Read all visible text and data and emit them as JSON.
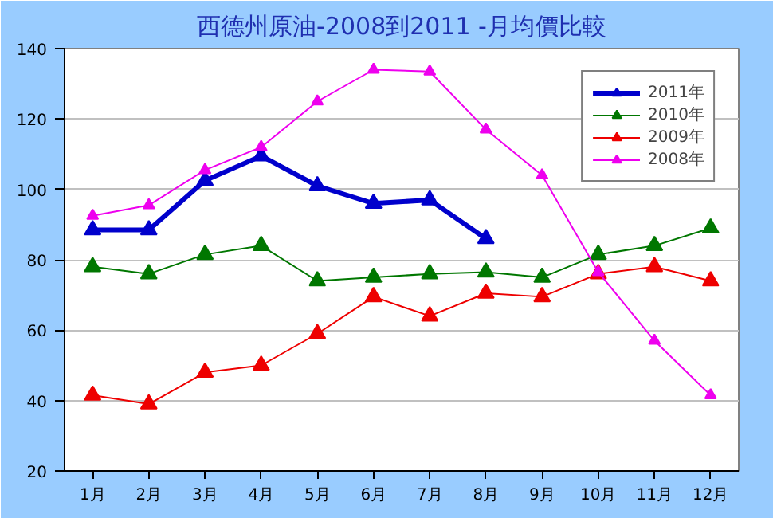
{
  "chart_data": {
    "type": "line",
    "title": "西德州原油-2008到2011 -月均價比較",
    "categories": [
      "1月",
      "2月",
      "3月",
      "4月",
      "5月",
      "6月",
      "7月",
      "8月",
      "9月",
      "10月",
      "11月",
      "12月"
    ],
    "ylim": [
      20,
      140
    ],
    "yticks": [
      20,
      40,
      60,
      80,
      100,
      120,
      140
    ],
    "grid": "y",
    "legend": "top right",
    "marker": "triangle",
    "line_style": "solid",
    "series": [
      {
        "name": "2011年",
        "color": "#0000cc",
        "values": [
          88.5,
          88.5,
          102.5,
          109.5,
          101,
          96,
          97,
          86,
          null,
          null,
          null,
          null
        ]
      },
      {
        "name": "2010年",
        "color": "#007700",
        "values": [
          78,
          76,
          81.5,
          84,
          74,
          75,
          76,
          76.5,
          75,
          81.5,
          84,
          89
        ]
      },
      {
        "name": "2009年",
        "color": "#ee0000",
        "values": [
          41.5,
          39,
          48,
          50,
          59,
          69.5,
          64,
          70.5,
          69.5,
          76,
          78,
          74
        ]
      },
      {
        "name": "2008年",
        "color": "#ee00ee",
        "values": [
          92.5,
          95.5,
          105.5,
          112,
          125,
          134,
          133.5,
          117,
          104,
          76.5,
          57,
          41.5
        ]
      }
    ]
  }
}
